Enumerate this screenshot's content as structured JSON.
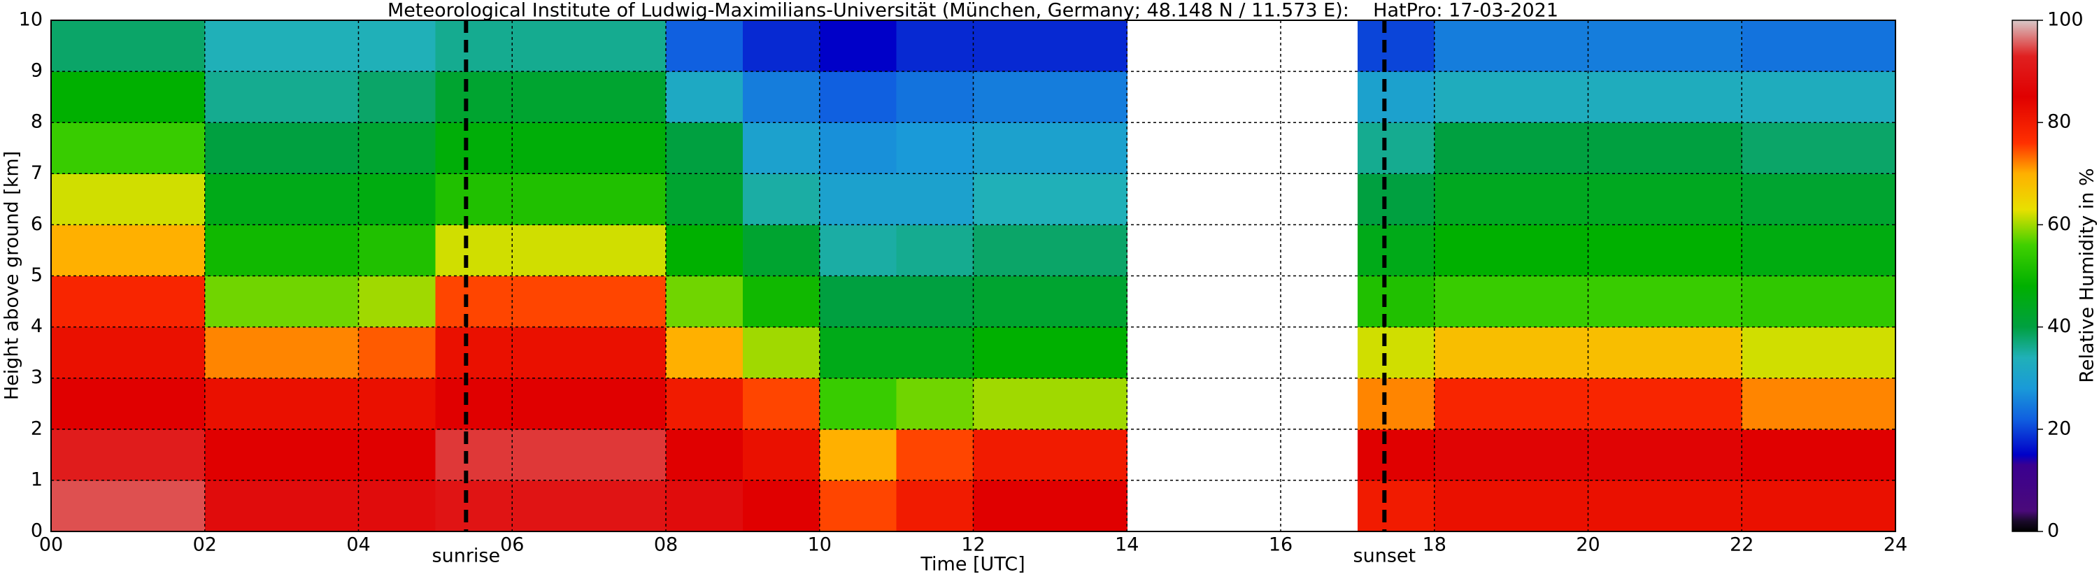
{
  "chart_data": {
    "type": "heatmap",
    "title": "Meteorological Institute of Ludwig-Maximilians-Universität (München, Germany; 48.148 N / 11.573 E):    HatPro: 17-03-2021",
    "xlabel": "Time [UTC]",
    "ylabel": "Height above ground [km]",
    "colorbar_label": "Relative Humidity in %",
    "x_edges": [
      0,
      1,
      2,
      3,
      4,
      5,
      6,
      7,
      8,
      9,
      10,
      11,
      12,
      13,
      14,
      15,
      16,
      17,
      18,
      19,
      20,
      21,
      22,
      23,
      24
    ],
    "y_edges": [
      0,
      1,
      2,
      3,
      4,
      5,
      6,
      7,
      8,
      9,
      10
    ],
    "z": [
      [
        95,
        95,
        88,
        88,
        88,
        90,
        90,
        90,
        88,
        85,
        75,
        80,
        85,
        85,
        null,
        null,
        null,
        80,
        82,
        82,
        82,
        82,
        82,
        82
      ],
      [
        92,
        92,
        85,
        85,
        85,
        94,
        94,
        94,
        85,
        82,
        70,
        75,
        80,
        80,
        null,
        null,
        null,
        85,
        86,
        86,
        86,
        86,
        85,
        85
      ],
      [
        85,
        85,
        82,
        82,
        82,
        85,
        85,
        85,
        80,
        75,
        55,
        58,
        60,
        60,
        null,
        null,
        null,
        72,
        78,
        78,
        78,
        78,
        72,
        72
      ],
      [
        82,
        82,
        72,
        72,
        74,
        82,
        82,
        82,
        70,
        60,
        45,
        45,
        48,
        48,
        null,
        null,
        null,
        62,
        68,
        68,
        68,
        68,
        62,
        62
      ],
      [
        78,
        78,
        58,
        58,
        60,
        75,
        75,
        75,
        58,
        50,
        40,
        40,
        42,
        42,
        null,
        null,
        null,
        52,
        55,
        55,
        55,
        55,
        54,
        54
      ],
      [
        70,
        70,
        50,
        50,
        52,
        62,
        62,
        62,
        48,
        42,
        35,
        36,
        38,
        38,
        null,
        null,
        null,
        45,
        48,
        48,
        48,
        48,
        46,
        46
      ],
      [
        62,
        62,
        45,
        45,
        46,
        52,
        52,
        52,
        42,
        35,
        30,
        30,
        34,
        34,
        null,
        null,
        null,
        40,
        44,
        44,
        44,
        44,
        42,
        42
      ],
      [
        55,
        55,
        40,
        40,
        42,
        47,
        47,
        47,
        40,
        30,
        27,
        28,
        30,
        30,
        null,
        null,
        null,
        36,
        40,
        40,
        40,
        40,
        38,
        38
      ],
      [
        48,
        48,
        36,
        36,
        38,
        42,
        42,
        42,
        32,
        25,
        22,
        24,
        25,
        25,
        null,
        null,
        null,
        30,
        33,
        33,
        33,
        33,
        33,
        33
      ],
      [
        38,
        38,
        34,
        34,
        34,
        36,
        36,
        36,
        22,
        18,
        15,
        18,
        18,
        18,
        null,
        null,
        null,
        20,
        25,
        25,
        25,
        25,
        24,
        24
      ]
    ],
    "xlim": [
      0,
      24
    ],
    "ylim": [
      0,
      10
    ],
    "xticks": [
      {
        "value": 0,
        "label": "00"
      },
      {
        "value": 2,
        "label": "02"
      },
      {
        "value": 4,
        "label": "04"
      },
      {
        "value": 6,
        "label": "06"
      },
      {
        "value": 8,
        "label": "08"
      },
      {
        "value": 10,
        "label": "10"
      },
      {
        "value": 12,
        "label": "12"
      },
      {
        "value": 14,
        "label": "14"
      },
      {
        "value": 16,
        "label": "16"
      },
      {
        "value": 18,
        "label": "18"
      },
      {
        "value": 20,
        "label": "20"
      },
      {
        "value": 22,
        "label": "22"
      },
      {
        "value": 24,
        "label": "24"
      }
    ],
    "yticks": [
      0,
      1,
      2,
      3,
      4,
      5,
      6,
      7,
      8,
      9,
      10
    ],
    "grid": true,
    "annotations": [
      {
        "text": "sunrise",
        "x": 5.4
      },
      {
        "text": "sunset",
        "x": 17.35
      }
    ],
    "clim": [
      0,
      100
    ],
    "colorbar_ticks": [
      0,
      20,
      40,
      60,
      80,
      100
    ],
    "colorscale": [
      [
        0,
        "#000000"
      ],
      [
        2,
        "#1a0a2a"
      ],
      [
        4,
        "#4a0a7a"
      ],
      [
        13,
        "#3a0090"
      ],
      [
        15,
        "#0000c8"
      ],
      [
        22,
        "#1060e0"
      ],
      [
        28,
        "#1a9ad8"
      ],
      [
        34,
        "#20b0b8"
      ],
      [
        40,
        "#00a040"
      ],
      [
        48,
        "#00b000"
      ],
      [
        56,
        "#40d000"
      ],
      [
        63,
        "#e8e000"
      ],
      [
        70,
        "#ffb000"
      ],
      [
        76,
        "#ff3000"
      ],
      [
        85,
        "#e00000"
      ],
      [
        93,
        "#e02020"
      ],
      [
        100,
        "#d8c8c8"
      ]
    ]
  }
}
